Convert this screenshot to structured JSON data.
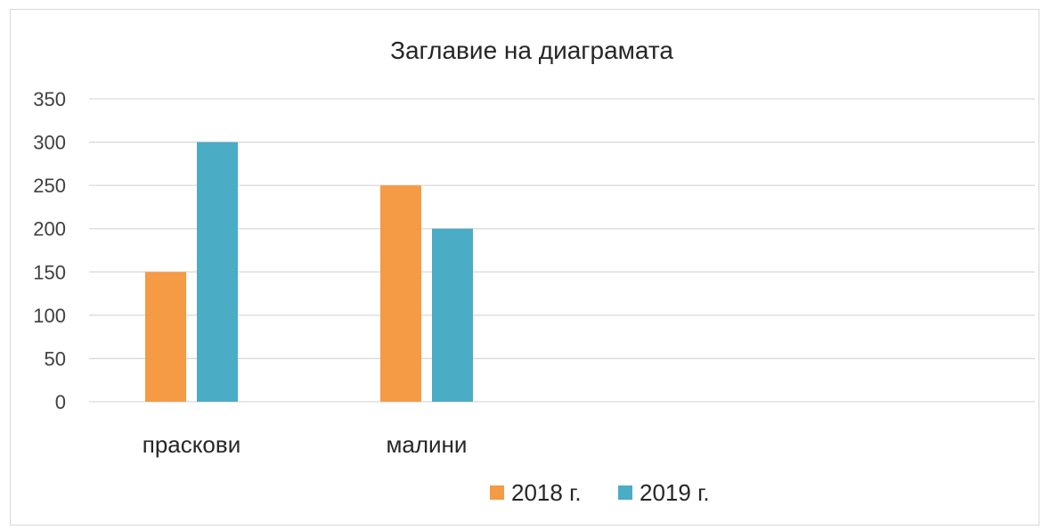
{
  "chart_data": {
    "type": "bar",
    "title": "Заглавие на диаграмата",
    "xlabel": "",
    "ylabel": "",
    "categories": [
      "праскови",
      "малини"
    ],
    "series": [
      {
        "name": "2018 г.",
        "values": [
          150,
          250
        ],
        "color": "#f59a45"
      },
      {
        "name": "2019 г.",
        "values": [
          300,
          200
        ],
        "color": "#4bacc6"
      }
    ],
    "ylim": [
      0,
      350
    ],
    "yticks": [
      0,
      50,
      100,
      150,
      200,
      250,
      300,
      350
    ],
    "grid": true,
    "legend": "bottom"
  }
}
